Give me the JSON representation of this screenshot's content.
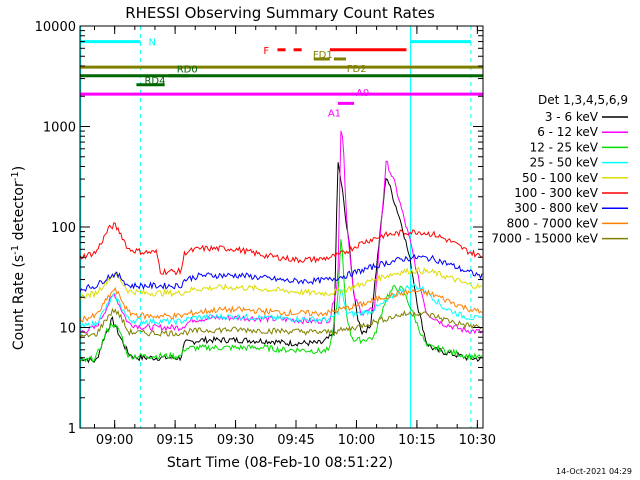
{
  "chart_data": {
    "type": "line",
    "title": "RHESSI Observing Summary Count Rates",
    "xlabel": "Start Time (08-Feb-10 08:51:22)",
    "ylabel": "Count Rate (s-1 detector-1)",
    "ylabel_parts": {
      "main": "Count Rate (s",
      "exp1": "-1",
      "mid": " detector",
      "exp2": "-1",
      "end": ")"
    },
    "x_unit": "minutes since 08:51:22",
    "xlim": [
      0,
      100
    ],
    "ylim": [
      1,
      10000
    ],
    "yscale": "log",
    "x_ticks": [
      {
        "x": 8.6,
        "label": "09:00"
      },
      {
        "x": 23.6,
        "label": "09:15"
      },
      {
        "x": 38.6,
        "label": "09:30"
      },
      {
        "x": 53.6,
        "label": "09:45"
      },
      {
        "x": 68.6,
        "label": "10:00"
      },
      {
        "x": 83.6,
        "label": "10:15"
      },
      {
        "x": 98.6,
        "label": "10:30"
      }
    ],
    "y_ticks": [
      {
        "y": 1,
        "label": "1"
      },
      {
        "y": 10,
        "label": "10"
      },
      {
        "y": 100,
        "label": "100"
      },
      {
        "y": 1000,
        "label": "1000"
      },
      {
        "y": 10000,
        "label": "10000"
      }
    ],
    "legend": {
      "title": "Det 1,3,4,5,6,9",
      "placement": "right"
    },
    "series": [
      {
        "name": "3 - 6 keV",
        "color": "#000000",
        "points": [
          [
            0,
            5
          ],
          [
            4,
            4.6
          ],
          [
            6,
            8
          ],
          [
            8,
            12
          ],
          [
            10,
            8
          ],
          [
            12,
            5.5
          ],
          [
            14,
            5
          ],
          [
            20,
            5
          ],
          [
            25,
            5
          ],
          [
            26,
            7
          ],
          [
            30,
            7.5
          ],
          [
            40,
            7.5
          ],
          [
            48,
            7.3
          ],
          [
            51,
            7
          ],
          [
            55,
            7
          ],
          [
            60,
            7
          ],
          [
            63,
            8.5
          ],
          [
            64,
            450
          ],
          [
            65,
            250
          ],
          [
            66,
            110
          ],
          [
            67,
            60
          ],
          [
            68,
            20
          ],
          [
            69,
            12
          ],
          [
            70,
            9
          ],
          [
            72,
            10
          ],
          [
            76,
            330
          ],
          [
            78,
            180
          ],
          [
            80,
            100
          ],
          [
            82,
            45
          ],
          [
            84,
            15
          ],
          [
            86,
            7
          ],
          [
            88,
            6
          ],
          [
            92,
            5.5
          ],
          [
            96,
            5
          ],
          [
            100,
            4.8
          ]
        ]
      },
      {
        "name": "6 - 12 keV",
        "color": "#ff00ff",
        "points": [
          [
            0,
            9
          ],
          [
            4,
            10
          ],
          [
            7,
            17
          ],
          [
            8.5,
            22
          ],
          [
            10,
            16
          ],
          [
            12,
            11
          ],
          [
            16,
            10
          ],
          [
            20,
            10
          ],
          [
            25,
            10
          ],
          [
            28,
            12
          ],
          [
            34,
            12.5
          ],
          [
            40,
            12.5
          ],
          [
            46,
            12.2
          ],
          [
            52,
            12
          ],
          [
            58,
            11.5
          ],
          [
            62,
            12
          ],
          [
            64,
            30
          ],
          [
            64.8,
            1200
          ],
          [
            65.5,
            500
          ],
          [
            66,
            150
          ],
          [
            67,
            50
          ],
          [
            68,
            20
          ],
          [
            70,
            14
          ],
          [
            73,
            15
          ],
          [
            76,
            450
          ],
          [
            78,
            280
          ],
          [
            80,
            140
          ],
          [
            82,
            70
          ],
          [
            84,
            30
          ],
          [
            86,
            14
          ],
          [
            90,
            11
          ],
          [
            95,
            9.5
          ],
          [
            100,
            9
          ]
        ]
      },
      {
        "name": "12 - 25 keV",
        "color": "#00dd00",
        "points": [
          [
            0,
            4.5
          ],
          [
            4,
            5
          ],
          [
            6.5,
            9
          ],
          [
            8,
            11
          ],
          [
            10,
            9
          ],
          [
            12,
            5.2
          ],
          [
            16,
            5.2
          ],
          [
            20,
            5.2
          ],
          [
            25,
            5.2
          ],
          [
            26,
            6.2
          ],
          [
            32,
            6.3
          ],
          [
            38,
            6.3
          ],
          [
            46,
            6.3
          ],
          [
            50,
            6
          ],
          [
            54,
            6
          ],
          [
            60,
            5.8
          ],
          [
            62,
            6
          ],
          [
            64,
            20
          ],
          [
            64.8,
            80
          ],
          [
            65.5,
            30
          ],
          [
            66,
            15
          ],
          [
            67,
            9
          ],
          [
            68,
            7.5
          ],
          [
            70,
            7.5
          ],
          [
            73,
            8
          ],
          [
            76,
            20
          ],
          [
            78,
            25
          ],
          [
            80,
            24
          ],
          [
            82,
            16
          ],
          [
            84,
            10
          ],
          [
            86,
            6.5
          ],
          [
            90,
            6
          ],
          [
            96,
            5.2
          ],
          [
            100,
            5
          ]
        ]
      },
      {
        "name": "25 - 50 keV",
        "color": "#00ffff",
        "points": [
          [
            0,
            10
          ],
          [
            4,
            11
          ],
          [
            7,
            17
          ],
          [
            8.5,
            21
          ],
          [
            10,
            17
          ],
          [
            12,
            12
          ],
          [
            16,
            11.5
          ],
          [
            20,
            11.5
          ],
          [
            25,
            11.5
          ],
          [
            28,
            12.5
          ],
          [
            34,
            12.8
          ],
          [
            40,
            12.8
          ],
          [
            46,
            12.5
          ],
          [
            52,
            12.2
          ],
          [
            58,
            12
          ],
          [
            62,
            12
          ],
          [
            64,
            14
          ],
          [
            64.8,
            25
          ],
          [
            66,
            14
          ],
          [
            68,
            13.5
          ],
          [
            72,
            14.5
          ],
          [
            76,
            18
          ],
          [
            80,
            24
          ],
          [
            83,
            26
          ],
          [
            86,
            23
          ],
          [
            90,
            16
          ],
          [
            95,
            13
          ],
          [
            100,
            12
          ]
        ]
      },
      {
        "name": "50 - 100 keV",
        "color": "#dddd00",
        "points": [
          [
            0,
            20
          ],
          [
            4,
            22
          ],
          [
            7,
            30
          ],
          [
            8.5,
            34
          ],
          [
            10,
            30
          ],
          [
            12,
            23
          ],
          [
            16,
            22
          ],
          [
            20,
            22
          ],
          [
            25,
            22
          ],
          [
            28,
            24
          ],
          [
            34,
            25
          ],
          [
            40,
            25
          ],
          [
            46,
            24
          ],
          [
            52,
            23
          ],
          [
            58,
            22
          ],
          [
            62,
            22
          ],
          [
            64,
            23
          ],
          [
            66,
            24
          ],
          [
            70,
            27
          ],
          [
            75,
            32
          ],
          [
            80,
            36
          ],
          [
            84,
            37
          ],
          [
            88,
            35
          ],
          [
            92,
            31
          ],
          [
            96,
            27
          ],
          [
            100,
            25
          ]
        ]
      },
      {
        "name": "100 - 300 keV",
        "color": "#ff0000",
        "points": [
          [
            0,
            50
          ],
          [
            4,
            56
          ],
          [
            7,
            95
          ],
          [
            8.5,
            105
          ],
          [
            10,
            88
          ],
          [
            12,
            60
          ],
          [
            16,
            56
          ],
          [
            19,
            56
          ],
          [
            20,
            36
          ],
          [
            25,
            36
          ],
          [
            26,
            56
          ],
          [
            30,
            61
          ],
          [
            38,
            61
          ],
          [
            46,
            52
          ],
          [
            54,
            47
          ],
          [
            60,
            48
          ],
          [
            64,
            52
          ],
          [
            66,
            57
          ],
          [
            70,
            70
          ],
          [
            75,
            82
          ],
          [
            80,
            88
          ],
          [
            84,
            90
          ],
          [
            88,
            84
          ],
          [
            92,
            72
          ],
          [
            96,
            58
          ],
          [
            100,
            50
          ]
        ]
      },
      {
        "name": "300 - 800 keV",
        "color": "#0000ff",
        "points": [
          [
            0,
            24
          ],
          [
            4,
            26
          ],
          [
            7,
            32
          ],
          [
            8.5,
            34
          ],
          [
            10,
            32
          ],
          [
            12,
            26
          ],
          [
            16,
            26
          ],
          [
            20,
            26
          ],
          [
            25,
            26
          ],
          [
            26,
            30
          ],
          [
            30,
            33
          ],
          [
            40,
            33
          ],
          [
            46,
            31
          ],
          [
            52,
            29
          ],
          [
            58,
            29
          ],
          [
            62,
            30
          ],
          [
            66,
            33
          ],
          [
            70,
            37
          ],
          [
            75,
            43
          ],
          [
            80,
            48
          ],
          [
            84,
            50
          ],
          [
            88,
            48
          ],
          [
            92,
            42
          ],
          [
            96,
            36
          ],
          [
            100,
            32
          ]
        ]
      },
      {
        "name": "800 - 7000 keV",
        "color": "#ff8000",
        "points": [
          [
            0,
            12
          ],
          [
            4,
            13
          ],
          [
            7,
            20
          ],
          [
            8.5,
            24
          ],
          [
            10,
            20
          ],
          [
            12,
            14
          ],
          [
            16,
            13
          ],
          [
            20,
            13
          ],
          [
            25,
            13
          ],
          [
            28,
            14
          ],
          [
            34,
            15
          ],
          [
            40,
            15
          ],
          [
            46,
            14.5
          ],
          [
            52,
            14
          ],
          [
            58,
            13.8
          ],
          [
            62,
            14
          ],
          [
            64,
            15
          ],
          [
            66,
            15.5
          ],
          [
            70,
            17
          ],
          [
            75,
            20
          ],
          [
            80,
            22
          ],
          [
            84,
            23
          ],
          [
            88,
            21
          ],
          [
            92,
            18
          ],
          [
            96,
            15.5
          ],
          [
            100,
            14
          ]
        ]
      },
      {
        "name": "7000 - 15000 keV",
        "color": "#808000",
        "points": [
          [
            0,
            8
          ],
          [
            4,
            8.5
          ],
          [
            7,
            13
          ],
          [
            8.5,
            15
          ],
          [
            10,
            13
          ],
          [
            12,
            9
          ],
          [
            16,
            8.8
          ],
          [
            20,
            8.8
          ],
          [
            25,
            8.8
          ],
          [
            28,
            9.2
          ],
          [
            34,
            9.5
          ],
          [
            40,
            9.5
          ],
          [
            46,
            9.3
          ],
          [
            52,
            9.2
          ],
          [
            58,
            9
          ],
          [
            62,
            9
          ],
          [
            66,
            9.5
          ],
          [
            70,
            10.5
          ],
          [
            75,
            12
          ],
          [
            80,
            13.5
          ],
          [
            84,
            14
          ],
          [
            88,
            13
          ],
          [
            92,
            11.5
          ],
          [
            96,
            10.5
          ],
          [
            100,
            10
          ]
        ]
      }
    ],
    "state_bars": [
      {
        "label": "N",
        "color": "#00ffff",
        "y": 7000,
        "segments": [
          [
            0,
            15
          ],
          [
            82,
            97
          ]
        ],
        "label_x": 17
      },
      {
        "label": "F",
        "color": "#ff0000",
        "y": 5800,
        "segments": [
          [
            49,
            51
          ]
        ],
        "label_x": 45.5,
        "dots": [
          [
            49,
            50
          ],
          [
            50.5,
            51.3
          ]
        ]
      },
      {
        "label": "",
        "color": "#ff0000",
        "y": 5800,
        "segments": [
          [
            53,
            55
          ],
          [
            62,
            81
          ]
        ]
      },
      {
        "label": "FD1",
        "color": "#808000",
        "y": 4700,
        "segments": [
          [
            58,
            62
          ]
        ],
        "label_x": 57.8
      },
      {
        "label": "FD2",
        "color": "#808000",
        "y": 4700,
        "segments": [
          [
            63,
            66
          ]
        ],
        "label_x": 66.2
      },
      {
        "label": "",
        "color": "#808000",
        "y": 3900,
        "segments": [
          [
            0,
            100
          ]
        ]
      },
      {
        "label": "",
        "color": "#006600",
        "y": 3200,
        "segments": [
          [
            0,
            100
          ]
        ]
      },
      {
        "label": "RD0",
        "color": "#006600",
        "y": 3200,
        "segments": [
          [
            22,
            27
          ]
        ],
        "label_x": 24
      },
      {
        "label": "RD4",
        "color": "#006600",
        "y": 2600,
        "segments": [
          [
            14,
            21
          ]
        ],
        "label_x": 16
      },
      {
        "label": "A1",
        "color": "#ff00ff",
        "y": 1700,
        "segments": [
          [
            64,
            68
          ]
        ],
        "label_x": 61.5
      },
      {
        "label": "A0",
        "color": "#ff00ff",
        "y": 2100,
        "segments": [
          [
            0,
            100
          ]
        ],
        "label_x": 68.5
      }
    ],
    "vlines": [
      {
        "x": 0.2,
        "color": "#00ffff",
        "style": "solid"
      },
      {
        "x": 15,
        "color": "#00ffff",
        "style": "dashed"
      },
      {
        "x": 82,
        "color": "#00ffff",
        "style": "solid"
      },
      {
        "x": 97,
        "color": "#00ffff",
        "style": "dashed"
      }
    ]
  },
  "footer": {
    "timestamp": "14-Oct-2021 04:29"
  }
}
